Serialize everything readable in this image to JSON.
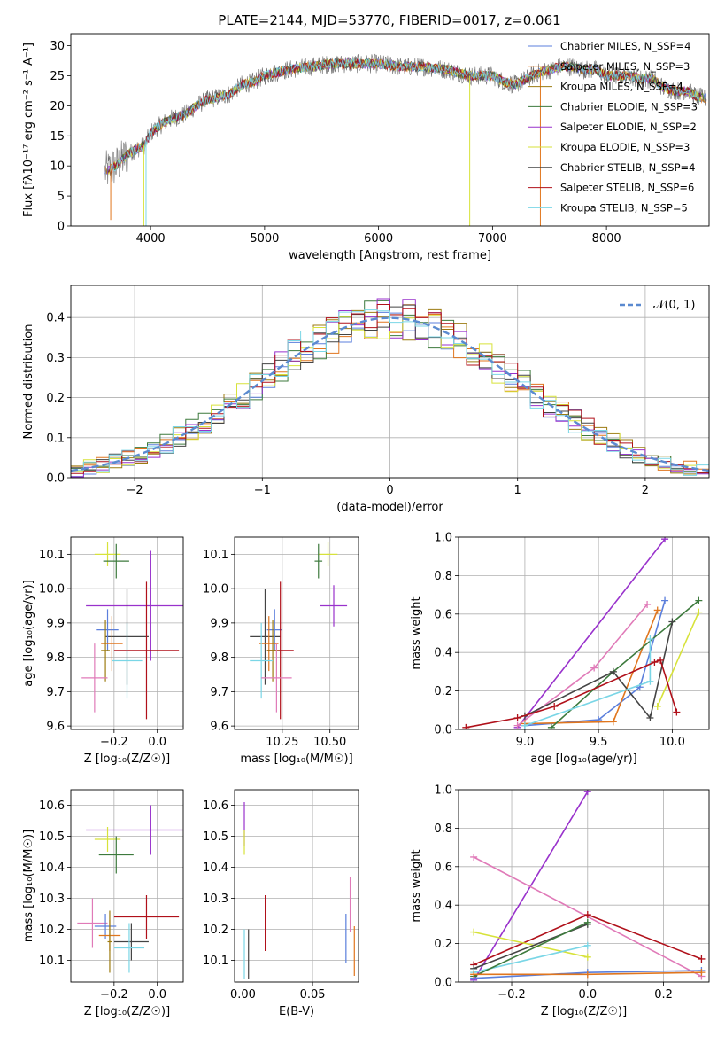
{
  "figure": {
    "title": "PLATE=2144, MJD=53770, FIBERID=0017, z=0.061"
  },
  "colors": {
    "c0": "#5b7fdc",
    "c1": "#e0761e",
    "c2": "#9c7b10",
    "c3": "#3d7a3d",
    "c4": "#9932cc",
    "c5": "#d7e23a",
    "c6": "#444444",
    "c7": "#b0101a",
    "c8": "#7ad6e6",
    "c9": "#e07ab8"
  },
  "chart_data": [
    {
      "id": "spectrum",
      "type": "line",
      "xlabel": "wavelength [Angstrom, rest frame]",
      "ylabel": "Flux [fλ10⁻¹⁷ erg cm⁻² s⁻¹ A⁻¹]",
      "xlim": [
        3300,
        8900
      ],
      "ylim": [
        0,
        32
      ],
      "xticks": [
        4000,
        5000,
        6000,
        7000,
        8000
      ],
      "yticks": [
        0,
        5,
        10,
        15,
        20,
        25,
        30
      ],
      "legend_position": "top-right",
      "series": [
        {
          "name": "Chabrier MILES, N_SSP=4",
          "color": "c0"
        },
        {
          "name": "Salpeter MILES, N_SSP=3",
          "color": "c1"
        },
        {
          "name": "Kroupa MILES, N_SSP=4",
          "color": "c2"
        },
        {
          "name": "Chabrier ELODIE, N_SSP=3",
          "color": "c3"
        },
        {
          "name": "Salpeter ELODIE, N_SSP=2",
          "color": "c4"
        },
        {
          "name": "Kroupa ELODIE, N_SSP=3",
          "color": "c5"
        },
        {
          "name": "Chabrier STELIB, N_SSP=4",
          "color": "c6"
        },
        {
          "name": "Salpeter STELIB, N_SSP=6",
          "color": "c7"
        },
        {
          "name": "Kroupa STELIB, N_SSP=5",
          "color": "c8"
        }
      ],
      "continuum": {
        "x": [
          3600,
          3700,
          3800,
          3900,
          3950,
          4000,
          4100,
          4200,
          4300,
          4400,
          4500,
          4600,
          4700,
          4800,
          4900,
          5000,
          5200,
          5400,
          5600,
          5800,
          6000,
          6200,
          6400,
          6600,
          6800,
          7000,
          7100,
          7200,
          7300,
          7400,
          7500,
          7600,
          7700,
          7800,
          7900,
          8000,
          8100,
          8200,
          8300,
          8400,
          8500,
          8600,
          8700,
          8800,
          8900
        ],
        "y": [
          9,
          10,
          12,
          13,
          13.5,
          15.5,
          17,
          18,
          18.5,
          20,
          21,
          21.5,
          22,
          23.5,
          24,
          25,
          26,
          26.5,
          27,
          27,
          27,
          26.5,
          26.5,
          26,
          25,
          25,
          24,
          23.5,
          24.5,
          25.5,
          26,
          26.5,
          26.5,
          26,
          26,
          25,
          25,
          25,
          24.5,
          24.5,
          23,
          22.5,
          22.5,
          21.5,
          21
        ]
      }
    },
    {
      "id": "residuals",
      "type": "bar",
      "xlabel": "(data-model)/error",
      "ylabel": "Normed distribution",
      "xlim": [
        -2.5,
        2.5
      ],
      "ylim": [
        0,
        0.48
      ],
      "xticks": [
        -2,
        -1,
        0,
        1,
        2
      ],
      "yticks": [
        0.0,
        0.1,
        0.2,
        0.3,
        0.4
      ],
      "grid": true,
      "legend_position": "top-right",
      "legend": "𝒩(0, 1)",
      "bin_width": 0.1,
      "normal_curve": {
        "mean": 0,
        "sd": 1,
        "color": "#5b8ad0"
      }
    },
    {
      "id": "age_vs_Z",
      "type": "scatter",
      "xlabel": "Z [log₁₀(Z/Z☉)]",
      "ylabel": "age  [log₁₀(age/yr)]",
      "xlim": [
        -0.4,
        0.12
      ],
      "ylim": [
        9.59,
        10.15
      ],
      "xticks": [
        -0.2,
        0.0
      ],
      "yticks": [
        9.6,
        9.7,
        9.8,
        9.9,
        10.0,
        10.1
      ],
      "grid": true,
      "points": [
        {
          "color": "c5",
          "x": -0.23,
          "y": 10.1,
          "xerr": 0.06,
          "yerr": 0.035
        },
        {
          "color": "c3",
          "x": -0.19,
          "y": 10.08,
          "xerr": 0.06,
          "yerr": 0.05
        },
        {
          "color": "c4",
          "x": -0.03,
          "y": 9.95,
          "xerr": 0.3,
          "yerr": 0.16
        },
        {
          "color": "c6",
          "x": -0.14,
          "y": 9.86,
          "xerr": 0.1,
          "yerr": 0.14
        },
        {
          "color": "c0",
          "x": -0.23,
          "y": 9.88,
          "xerr": 0.05,
          "yerr": 0.06
        },
        {
          "color": "c1",
          "x": -0.21,
          "y": 9.84,
          "xerr": 0.05,
          "yerr": 0.08
        },
        {
          "color": "c7",
          "x": -0.05,
          "y": 9.82,
          "xerr": 0.15,
          "yerr": 0.2
        },
        {
          "color": "c2",
          "x": -0.24,
          "y": 9.82,
          "xerr": 0.02,
          "yerr": 0.09
        },
        {
          "color": "c8",
          "x": -0.14,
          "y": 9.79,
          "xerr": 0.07,
          "yerr": 0.11
        },
        {
          "color": "c9",
          "x": -0.29,
          "y": 9.74,
          "xerr": 0.06,
          "yerr": 0.1
        }
      ]
    },
    {
      "id": "age_vs_mass",
      "type": "scatter",
      "xlabel": "mass [log₁₀(M/M☉)]",
      "ylabel": "",
      "xlim": [
        10.0,
        10.65
      ],
      "ylim": [
        9.59,
        10.15
      ],
      "xticks": [
        10.25,
        10.5
      ],
      "yticks": [
        9.6,
        9.7,
        9.8,
        9.9,
        10.0,
        10.1
      ],
      "grid": true,
      "points": [
        {
          "color": "c5",
          "x": 10.49,
          "y": 10.1,
          "xerr": 0.05,
          "yerr": 0.035
        },
        {
          "color": "c3",
          "x": 10.44,
          "y": 10.08,
          "xerr": 0.02,
          "yerr": 0.05
        },
        {
          "color": "c4",
          "x": 10.52,
          "y": 9.95,
          "xerr": 0.07,
          "yerr": 0.06
        },
        {
          "color": "c6",
          "x": 10.16,
          "y": 9.86,
          "xerr": 0.08,
          "yerr": 0.14
        },
        {
          "color": "c0",
          "x": 10.21,
          "y": 9.88,
          "xerr": 0.04,
          "yerr": 0.06
        },
        {
          "color": "c1",
          "x": 10.18,
          "y": 9.84,
          "xerr": 0.05,
          "yerr": 0.08
        },
        {
          "color": "c7",
          "x": 10.24,
          "y": 9.82,
          "xerr": 0.07,
          "yerr": 0.2
        },
        {
          "color": "c2",
          "x": 10.2,
          "y": 9.82,
          "xerr": 0.03,
          "yerr": 0.09
        },
        {
          "color": "c8",
          "x": 10.14,
          "y": 9.79,
          "xerr": 0.06,
          "yerr": 0.11
        },
        {
          "color": "c9",
          "x": 10.22,
          "y": 9.74,
          "xerr": 0.08,
          "yerr": 0.1
        }
      ]
    },
    {
      "id": "weight_vs_age",
      "type": "line",
      "xlabel": "age  [log₁₀(age/yr)]",
      "ylabel": "mass weight",
      "xlim": [
        8.55,
        10.25
      ],
      "ylim": [
        0,
        1.0
      ],
      "xticks": [
        9.0,
        9.5,
        10.0
      ],
      "yticks": [
        0.0,
        0.2,
        0.4,
        0.6,
        0.8,
        1.0
      ],
      "grid": true,
      "series": [
        {
          "color": "c4",
          "x": [
            8.95,
            9.95
          ],
          "y": [
            0.01,
            0.99
          ]
        },
        {
          "color": "c9",
          "x": [
            8.95,
            9.47,
            9.83
          ],
          "y": [
            0.02,
            0.32,
            0.65
          ]
        },
        {
          "color": "c0",
          "x": [
            9.0,
            9.5,
            9.78,
            9.95
          ],
          "y": [
            0.02,
            0.05,
            0.22,
            0.67
          ]
        },
        {
          "color": "c1",
          "x": [
            9.0,
            9.6,
            9.9
          ],
          "y": [
            0.03,
            0.04,
            0.62
          ]
        },
        {
          "color": "c3",
          "x": [
            9.18,
            9.6,
            10.18
          ],
          "y": [
            0.01,
            0.3,
            0.67
          ]
        },
        {
          "color": "c5",
          "x": [
            9.9,
            10.18
          ],
          "y": [
            0.12,
            0.61
          ]
        },
        {
          "color": "c6",
          "x": [
            9.0,
            9.6,
            9.85,
            10.0
          ],
          "y": [
            0.07,
            0.3,
            0.06,
            0.56
          ]
        },
        {
          "color": "c8",
          "x": [
            9.0,
            9.85,
            9.85
          ],
          "y": [
            0.02,
            0.25,
            0.47
          ]
        },
        {
          "color": "c7",
          "x": [
            8.6,
            8.95,
            9.2,
            9.88,
            9.92,
            10.03
          ],
          "y": [
            0.01,
            0.06,
            0.12,
            0.35,
            0.36,
            0.09
          ]
        }
      ]
    },
    {
      "id": "mass_vs_Z",
      "type": "scatter",
      "xlabel": "Z [log₁₀(Z/Z☉)]",
      "ylabel": "mass [log₁₀(M/M☉)]",
      "xlim": [
        -0.4,
        0.12
      ],
      "ylim": [
        10.03,
        10.65
      ],
      "xticks": [
        -0.2,
        0.0
      ],
      "yticks": [
        10.1,
        10.2,
        10.3,
        10.4,
        10.5,
        10.6
      ],
      "grid": true,
      "points": [
        {
          "color": "c4",
          "x": -0.03,
          "y": 10.52,
          "xerr": 0.3,
          "yerr": 0.08
        },
        {
          "color": "c5",
          "x": -0.23,
          "y": 10.49,
          "xerr": 0.06,
          "yerr": 0.04
        },
        {
          "color": "c3",
          "x": -0.19,
          "y": 10.44,
          "xerr": 0.08,
          "yerr": 0.06
        },
        {
          "color": "c7",
          "x": -0.05,
          "y": 10.24,
          "xerr": 0.15,
          "yerr": 0.07
        },
        {
          "color": "c9",
          "x": -0.3,
          "y": 10.22,
          "xerr": 0.07,
          "yerr": 0.08
        },
        {
          "color": "c0",
          "x": -0.24,
          "y": 10.21,
          "xerr": 0.05,
          "yerr": 0.04
        },
        {
          "color": "c1",
          "x": -0.22,
          "y": 10.18,
          "xerr": 0.05,
          "yerr": 0.05
        },
        {
          "color": "c6",
          "x": -0.12,
          "y": 10.16,
          "xerr": 0.08,
          "yerr": 0.06
        },
        {
          "color": "c8",
          "x": -0.13,
          "y": 10.14,
          "xerr": 0.07,
          "yerr": 0.08
        },
        {
          "color": "c2",
          "x": -0.22,
          "y": 10.16,
          "xerr": 0.01,
          "yerr": 0.1
        }
      ]
    },
    {
      "id": "mass_vs_EBV",
      "type": "scatter",
      "xlabel": "E(B-V)",
      "ylabel": "",
      "xlim": [
        -0.006,
        0.083
      ],
      "ylim": [
        10.03,
        10.65
      ],
      "xticks": [
        0.0,
        0.05
      ],
      "yticks": [
        10.1,
        10.2,
        10.3,
        10.4,
        10.5,
        10.6
      ],
      "grid": true,
      "points": [
        {
          "color": "c4",
          "x": 0.001,
          "y": 10.54,
          "xerr": 0,
          "yerr": 0.07
        },
        {
          "color": "c5",
          "x": 0.001,
          "y": 10.48,
          "xerr": 0,
          "yerr": 0.04
        },
        {
          "color": "c9",
          "x": 0.077,
          "y": 10.28,
          "xerr": 0,
          "yerr": 0.09
        },
        {
          "color": "c7",
          "x": 0.016,
          "y": 10.22,
          "xerr": 0,
          "yerr": 0.09
        },
        {
          "color": "c0",
          "x": 0.074,
          "y": 10.17,
          "xerr": 0,
          "yerr": 0.08
        },
        {
          "color": "c1",
          "x": 0.08,
          "y": 10.13,
          "xerr": 0,
          "yerr": 0.08
        },
        {
          "color": "c8",
          "x": 0.001,
          "y": 10.12,
          "xerr": 0,
          "yerr": 0.08
        },
        {
          "color": "c6",
          "x": 0.004,
          "y": 10.12,
          "xerr": 0,
          "yerr": 0.08
        }
      ]
    },
    {
      "id": "weight_vs_Z",
      "type": "line",
      "xlabel": "Z [log₁₀(Z/Z☉)]",
      "ylabel": "mass weight",
      "xlim": [
        -0.34,
        0.32
      ],
      "ylim": [
        0,
        1.0
      ],
      "xticks": [
        -0.2,
        0.0,
        0.2
      ],
      "yticks": [
        0.0,
        0.2,
        0.4,
        0.6,
        0.8,
        1.0
      ],
      "grid": true,
      "series": [
        {
          "color": "c4",
          "x": [
            -0.3,
            0.0
          ],
          "y": [
            0.01,
            0.99
          ]
        },
        {
          "color": "c9",
          "x": [
            -0.3,
            0.3
          ],
          "y": [
            0.65,
            0.03
          ]
        },
        {
          "color": "c7",
          "x": [
            -0.3,
            0.0,
            0.3
          ],
          "y": [
            0.09,
            0.35,
            0.12
          ]
        },
        {
          "color": "c5",
          "x": [
            -0.3,
            0.0
          ],
          "y": [
            0.26,
            0.13
          ]
        },
        {
          "color": "c6",
          "x": [
            -0.3,
            0.0
          ],
          "y": [
            0.07,
            0.3
          ]
        },
        {
          "color": "c8",
          "x": [
            -0.3,
            0.0
          ],
          "y": [
            0.05,
            0.19
          ]
        },
        {
          "color": "c3",
          "x": [
            -0.3,
            0.0
          ],
          "y": [
            0.03,
            0.31
          ]
        },
        {
          "color": "c0",
          "x": [
            -0.3,
            0.0,
            0.3
          ],
          "y": [
            0.02,
            0.05,
            0.06
          ]
        },
        {
          "color": "c1",
          "x": [
            -0.3,
            0.0,
            0.3
          ],
          "y": [
            0.04,
            0.04,
            0.05
          ]
        }
      ]
    }
  ]
}
